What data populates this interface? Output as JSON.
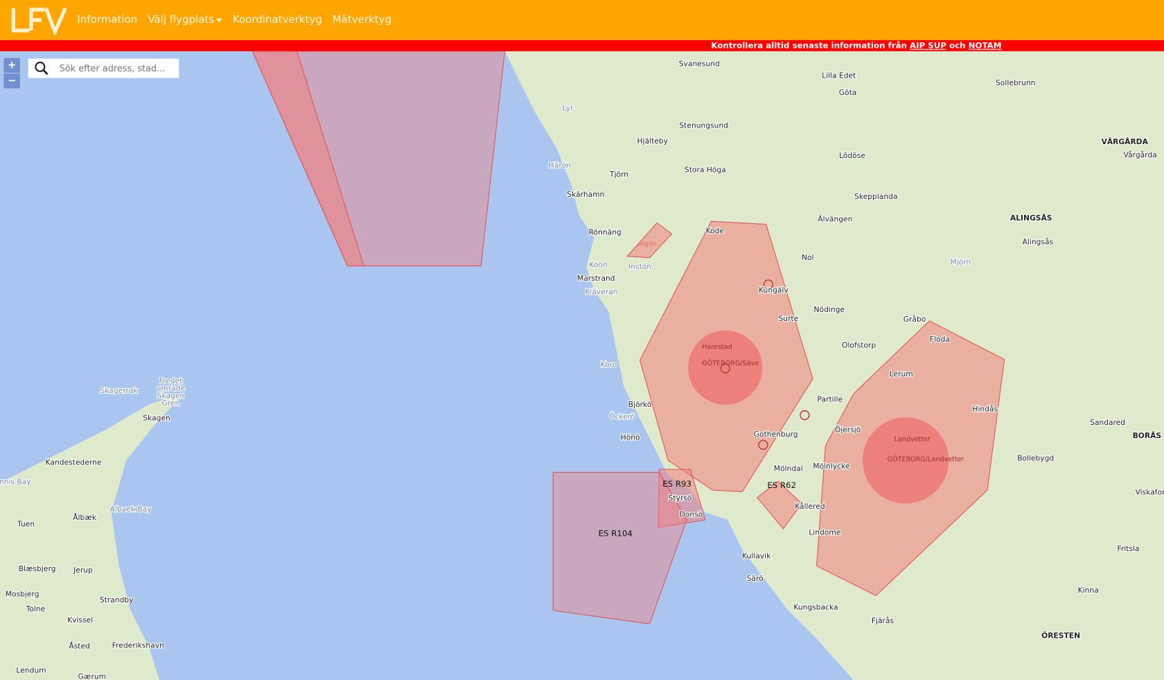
{
  "nav": {
    "logo": "LFV",
    "items": [
      "Information",
      "Välj flygplats",
      "Koordinatverktyg",
      "Mätverktyg"
    ]
  },
  "warning": {
    "text": "Kontrollera alltid senaste information från ",
    "link1": "AIP SUP",
    "mid": " och ",
    "link2": "NOTAM"
  },
  "map_controls": {
    "zoom_in": "+",
    "zoom_out": "−"
  },
  "search": {
    "placeholder": "Sök efter adress, stad...",
    "icon": "search-icon"
  },
  "colors": {
    "nav": "#ffa500",
    "warning": "#ff0000",
    "sea": "#aac6f0",
    "land": "#dfeacc",
    "zone": "#f08080"
  },
  "airspaces": [
    "ES R93",
    "ES R62",
    "ES R104",
    "GÖTEBORG/Säve",
    "GÖTEBORG/Landvetter",
    "Harestad",
    "Landvetter",
    "Algön"
  ],
  "places": [
    "Svanesund",
    "Lilla Edet",
    "Göta",
    "Sollebrunn",
    "Stenungsund",
    "Hjälteby",
    "Lyr",
    "Härön",
    "Tjörn",
    "Stora Höga",
    "Lödöse",
    "Skepplanda",
    "Skärhamn",
    "Rönnäng",
    "Kode",
    "Älvängen",
    "Nol",
    "Marstrand",
    "Koön",
    "Instön",
    "Kläveran",
    "Kungälv",
    "Nödinge",
    "Surte",
    "Gråbo",
    "Olofstorp",
    "Floda",
    "Lerum",
    "Hindås",
    "Partille",
    "Björkö",
    "Öckerö",
    "Hönö",
    "Öjersjö",
    "Gothenburg",
    "Mölndal",
    "Mölnlycke",
    "Bollebygd",
    "Styrsö",
    "Donsö",
    "Kållered",
    "Lindome",
    "Kullavik",
    "Särö",
    "Kungsbacka",
    "Fjärås",
    "Fritsla",
    "Kinna",
    "ÖRESTEN",
    "VÅRGÅRDA",
    "Vårgårda",
    "ALINGSÅS",
    "Alingsås",
    "Mjörn",
    "Sandared",
    "BORÅS",
    "Viskafors",
    "Skagerrak",
    "Fredet område Skagen Gren",
    "Skagen",
    "Kandestederne",
    "Ålbæk",
    "Albaek Bay",
    "Tuen",
    "Jerup",
    "Blæsbjerg",
    "Mosbjerg",
    "Strandby",
    "Tolne",
    "Kvissel",
    "Åsted",
    "Frederikshavn",
    "Lendum",
    "Gærum",
    "Koro",
    "Tannis Bay"
  ]
}
